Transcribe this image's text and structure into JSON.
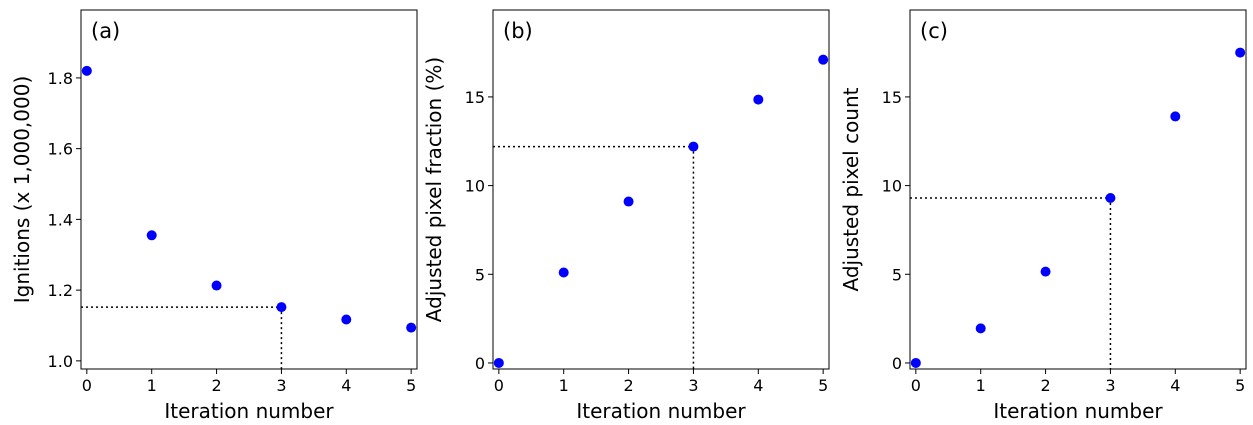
{
  "chart_data": [
    {
      "type": "scatter",
      "panel_label": "(a)",
      "x_label": "Iteration number",
      "y_label": "Ignitions (x 1,000,000)",
      "x": [
        0,
        1,
        2,
        3,
        4,
        5
      ],
      "values": [
        1.82,
        1.355,
        1.213,
        1.152,
        1.117,
        1.094
      ],
      "color": "#0000ff",
      "xlim": [
        -0.09,
        5.09
      ],
      "ylim": [
        0.977,
        1.992
      ],
      "xticks": [
        0,
        1,
        2,
        3,
        4,
        5
      ],
      "yticks": [
        {
          "value": 1.0,
          "label": "1.0"
        },
        1.2,
        1.4,
        1.6,
        1.8
      ],
      "highlight": 3
    },
    {
      "type": "scatter",
      "panel_label": "(b)",
      "x_label": "Iteration number",
      "y_label": "Adjusted pixel fraction (%)",
      "x": [
        0,
        1,
        2,
        3,
        4,
        5
      ],
      "values": [
        0,
        5.1,
        9.1,
        12.2,
        14.85,
        17.1
      ],
      "color": "#0000ff",
      "xlim": [
        -0.09,
        5.09
      ],
      "ylim": [
        -0.34,
        19.9
      ],
      "xticks": [
        0,
        1,
        2,
        3,
        4,
        5
      ],
      "yticks": [
        0,
        5,
        10,
        15
      ],
      "highlight": 3
    },
    {
      "type": "scatter",
      "panel_label": "(c)",
      "x_label": "Iteration number",
      "y_label": "Adjusted pixel count",
      "x": [
        0,
        1,
        2,
        3,
        4,
        5
      ],
      "values": [
        0,
        1.95,
        5.15,
        9.3,
        13.9,
        17.5
      ],
      "color": "#0000ff",
      "xlim": [
        -0.09,
        5.09
      ],
      "ylim": [
        -0.34,
        19.9
      ],
      "xticks": [
        0,
        1,
        2,
        3,
        4,
        5
      ],
      "yticks": [
        0,
        5,
        10,
        15
      ],
      "highlight": 3
    }
  ]
}
